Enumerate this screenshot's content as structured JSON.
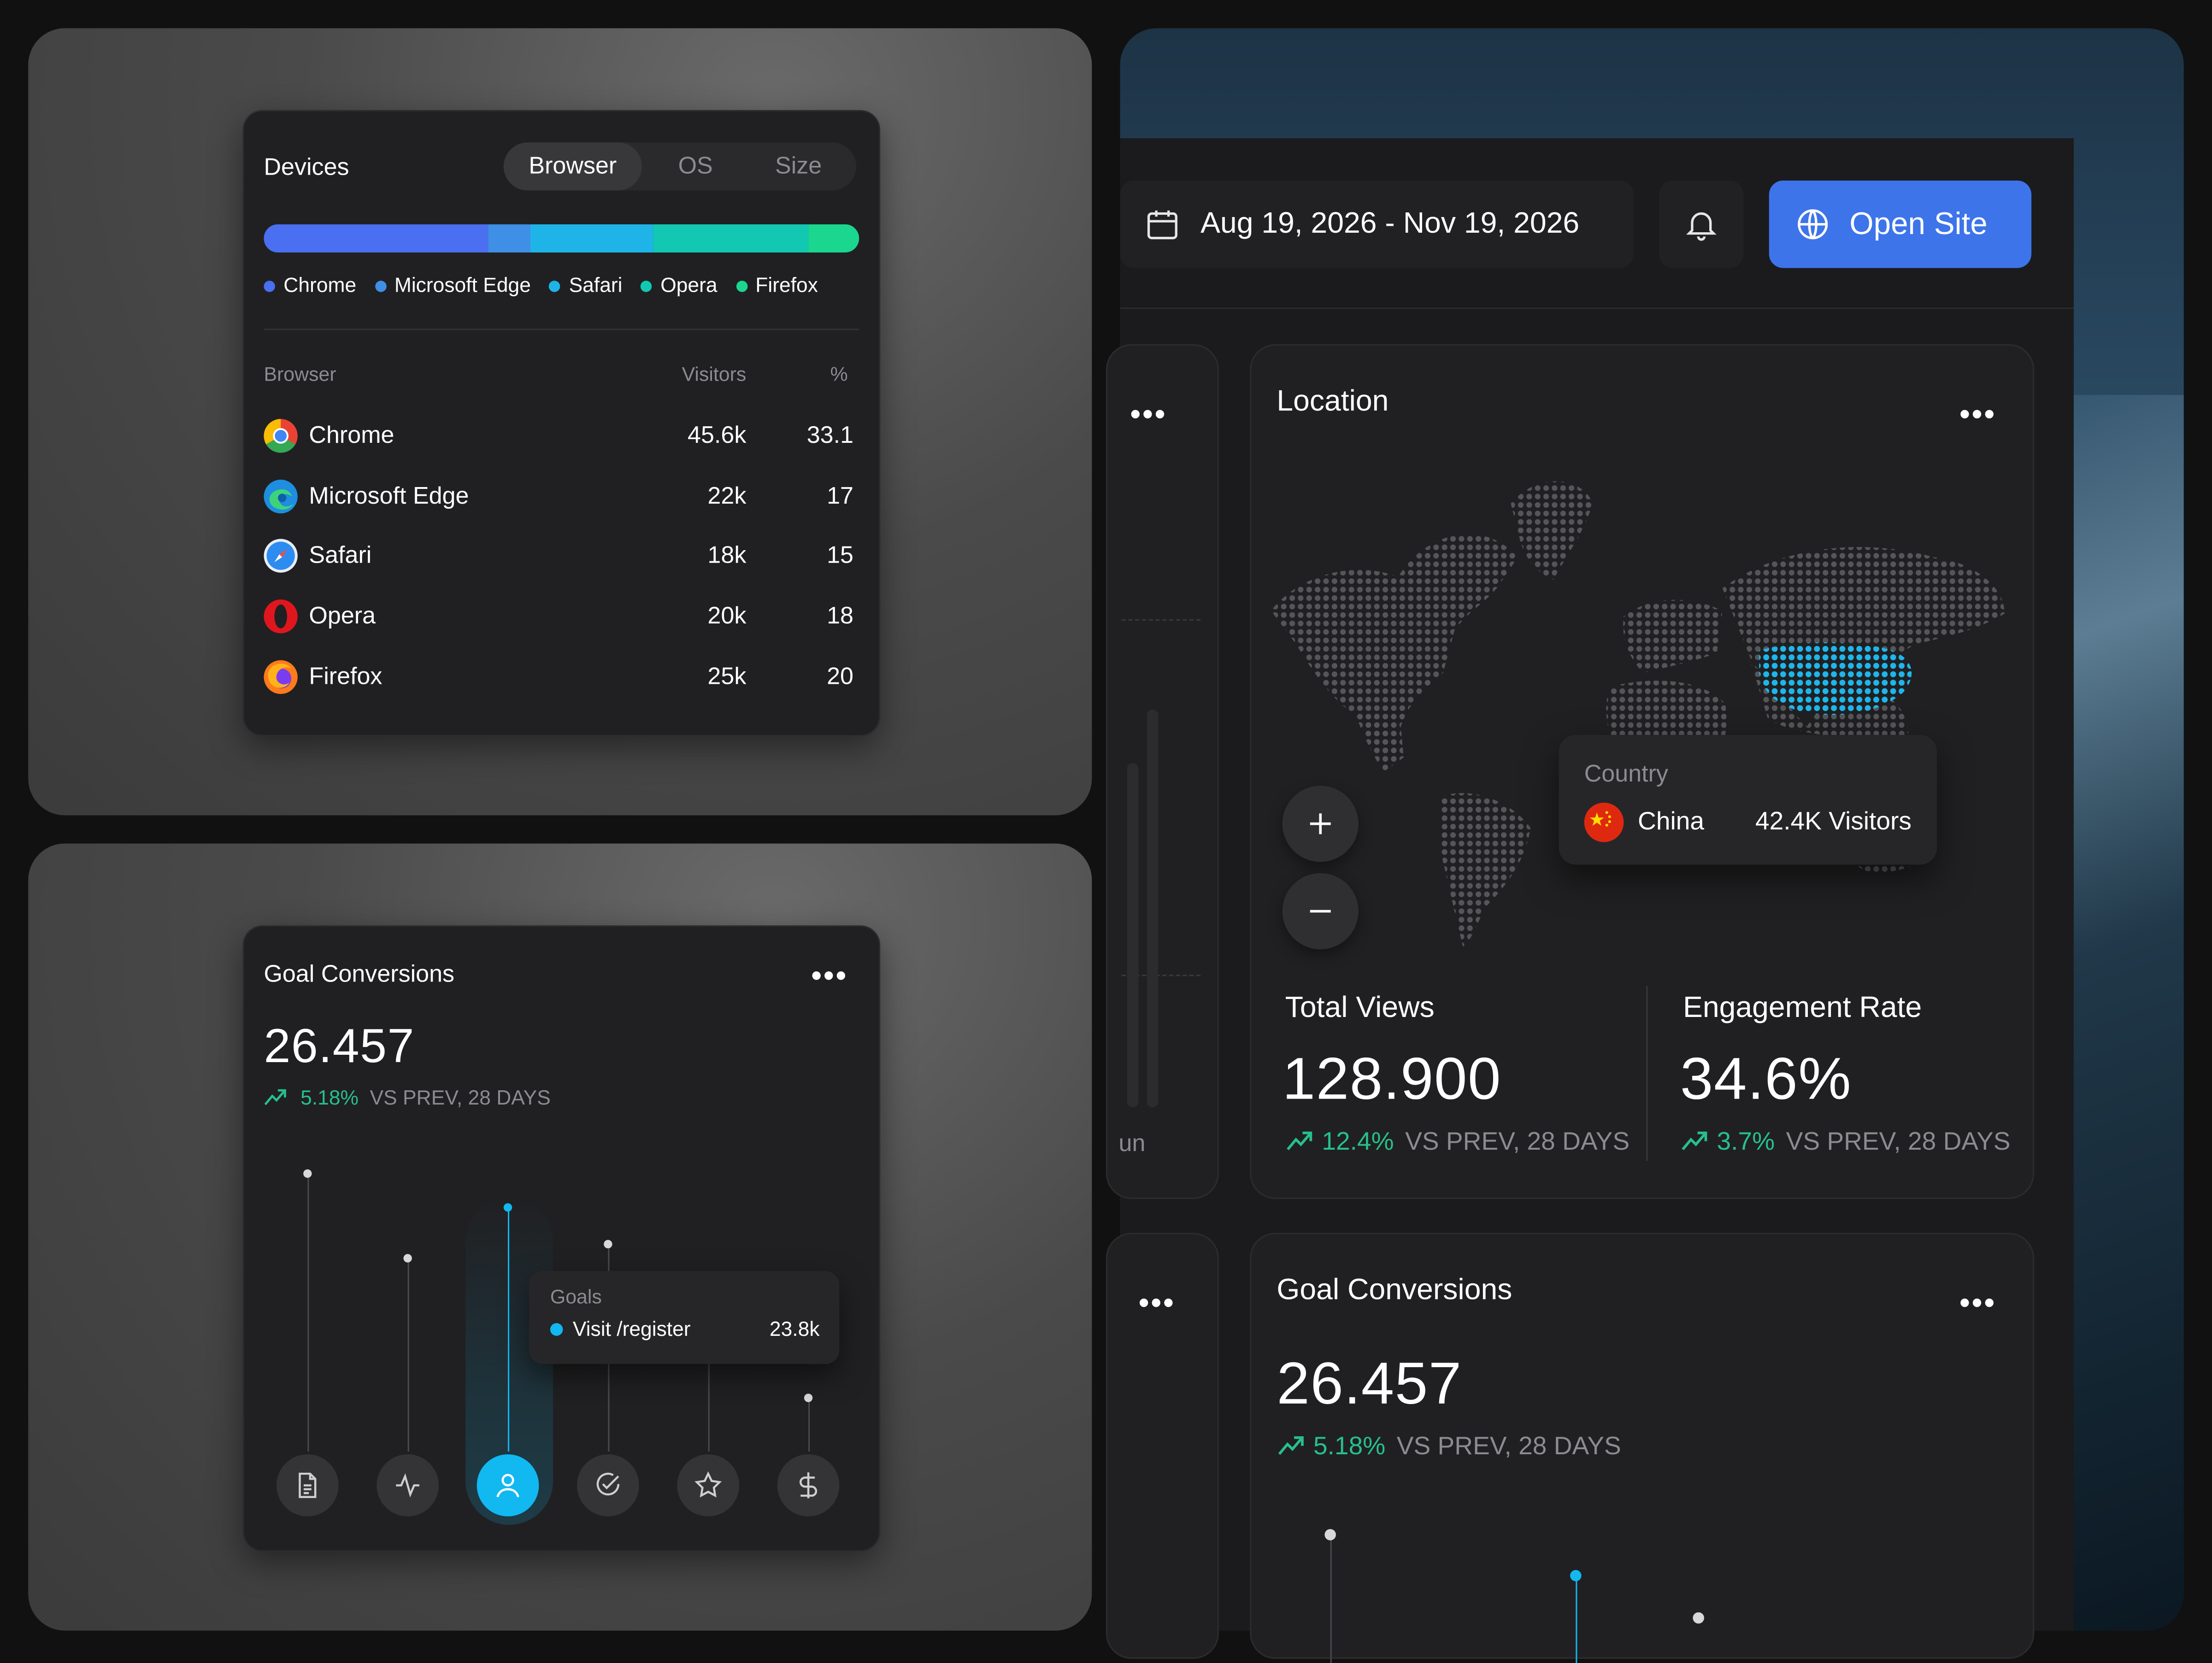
{
  "devices": {
    "title": "Devices",
    "tabs": [
      "Browser",
      "OS",
      "Size"
    ],
    "active_tab": "Browser",
    "legend": [
      {
        "label": "Chrome",
        "color": "#4a6ff0"
      },
      {
        "label": "Microsoft Edge",
        "color": "#3f8fe6"
      },
      {
        "label": "Safari",
        "color": "#1fb4e8"
      },
      {
        "label": "Opera",
        "color": "#12c8b2"
      },
      {
        "label": "Firefox",
        "color": "#1ad68f"
      }
    ],
    "columns": {
      "browser": "Browser",
      "visitors": "Visitors",
      "pct": "%"
    },
    "rows": [
      {
        "name": "Chrome",
        "visitors": "45.6k",
        "pct": "33.1",
        "icon": "chrome-icon"
      },
      {
        "name": "Microsoft Edge",
        "visitors": "22k",
        "pct": "17",
        "icon": "edge-icon"
      },
      {
        "name": "Safari",
        "visitors": "18k",
        "pct": "15",
        "icon": "safari-icon"
      },
      {
        "name": "Opera",
        "visitors": "20k",
        "pct": "18",
        "icon": "opera-icon"
      },
      {
        "name": "Firefox",
        "visitors": "25k",
        "pct": "20",
        "icon": "firefox-icon"
      }
    ]
  },
  "goal_small": {
    "title": "Goal Conversions",
    "value": "26.457",
    "change": "5.18%",
    "compare": "VS PREV, 28 DAYS",
    "tooltip": {
      "heading": "Goals",
      "label": "Visit /register",
      "value": "23.8k"
    },
    "icons": [
      "document-icon",
      "activity-icon",
      "user-icon",
      "check-circle-icon",
      "star-icon",
      "dollar-icon"
    ]
  },
  "dashboard": {
    "date_range": "Aug 19, 2026 - Nov 19, 2026",
    "open_site": "Open Site",
    "location": {
      "title": "Location",
      "tooltip": {
        "heading": "Country",
        "country": "China",
        "visitors": "42.4K Visitors"
      }
    },
    "stats": [
      {
        "label": "Total Views",
        "value": "128.900",
        "change": "12.4%",
        "compare": "VS PREV, 28 DAYS"
      },
      {
        "label": "Engagement Rate",
        "value": "34.6%",
        "change": "3.7%",
        "compare": "VS PREV, 28 DAYS"
      }
    ],
    "goal": {
      "title": "Goal Conversions",
      "value": "26.457",
      "change": "5.18%",
      "compare": "VS PREV, 28 DAYS"
    },
    "ghost_label": "un"
  },
  "colors": {
    "accent": "#3d74ea",
    "positive": "#27c08a",
    "highlight": "#12b8f0"
  }
}
